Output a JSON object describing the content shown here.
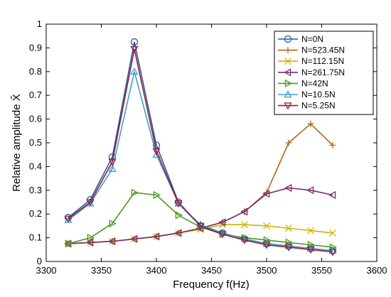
{
  "chart_data": {
    "type": "line",
    "xlabel": "Frequency f(Hz)",
    "ylabel": "Relative amplitude X̂",
    "xlim": [
      3300,
      3600
    ],
    "ylim": [
      0,
      1
    ],
    "xticks": [
      3300,
      3350,
      3400,
      3450,
      3500,
      3550,
      3600
    ],
    "yticks": [
      0,
      0.1,
      0.2,
      0.3,
      0.4,
      0.5,
      0.6,
      0.7,
      0.8,
      0.9,
      1
    ],
    "ytick_labels": [
      "0",
      "0.1",
      "0.2",
      "0.3",
      "0.4",
      "0.5",
      "0.6",
      "0.7",
      "0.8",
      "0.9",
      "1"
    ],
    "grid": false,
    "legend_position": "top-right",
    "x": [
      3320,
      3340,
      3360,
      3380,
      3400,
      3420,
      3440,
      3460,
      3480,
      3500,
      3520,
      3540,
      3560
    ],
    "series": [
      {
        "name": "N=0N",
        "color": "#1f5fa8",
        "marker": "circle",
        "values": [
          0.185,
          0.26,
          0.44,
          0.925,
          0.49,
          0.25,
          0.15,
          0.12,
          0.095,
          0.075,
          0.065,
          0.055,
          0.045
        ]
      },
      {
        "name": "N=523.45N",
        "color": "#b5651d",
        "marker": "plus",
        "values": [
          0.075,
          0.08,
          0.085,
          0.095,
          0.105,
          0.12,
          0.14,
          0.165,
          0.21,
          0.29,
          0.5,
          0.58,
          0.49
        ]
      },
      {
        "name": "N=112.15N",
        "color": "#d4b000",
        "marker": "x",
        "values": [
          0.075,
          0.08,
          0.085,
          0.095,
          0.105,
          0.12,
          0.135,
          0.155,
          0.155,
          0.15,
          0.14,
          0.13,
          0.12
        ]
      },
      {
        "name": "N=261.75N",
        "color": "#7b2d6b",
        "marker": "triangle-left",
        "values": [
          0.075,
          0.08,
          0.085,
          0.095,
          0.105,
          0.12,
          0.14,
          0.165,
          0.21,
          0.285,
          0.31,
          0.3,
          0.28
        ]
      },
      {
        "name": "N=42N",
        "color": "#4a9a1a",
        "marker": "triangle-right",
        "values": [
          0.075,
          0.1,
          0.16,
          0.29,
          0.28,
          0.195,
          0.145,
          0.115,
          0.1,
          0.09,
          0.08,
          0.07,
          0.06
        ]
      },
      {
        "name": "N=10.5N",
        "color": "#3a9fd6",
        "marker": "triangle-up",
        "values": [
          0.175,
          0.245,
          0.39,
          0.8,
          0.45,
          0.245,
          0.155,
          0.12,
          0.095,
          0.075,
          0.065,
          0.055,
          0.045
        ]
      },
      {
        "name": "N=5.25N",
        "color": "#9b1b30",
        "marker": "triangle-down",
        "values": [
          0.18,
          0.25,
          0.42,
          0.895,
          0.465,
          0.245,
          0.15,
          0.115,
          0.09,
          0.07,
          0.06,
          0.05,
          0.04
        ]
      }
    ]
  }
}
